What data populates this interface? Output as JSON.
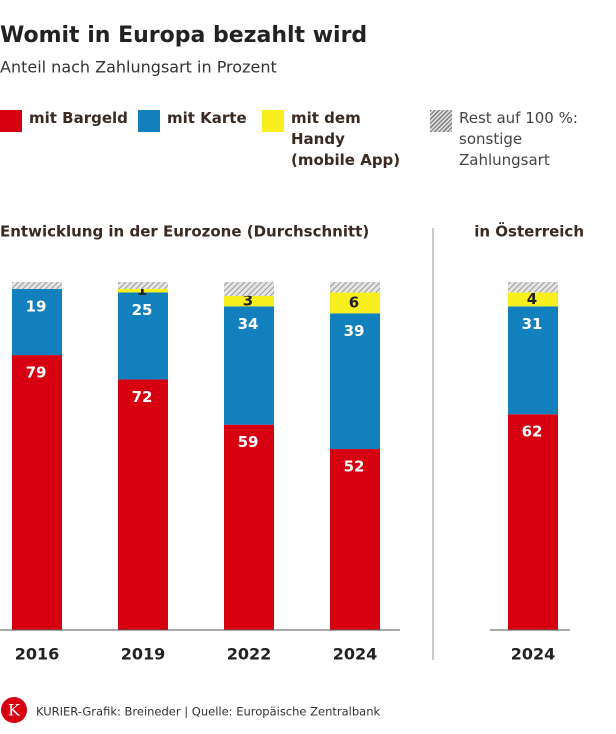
{
  "title": "Womit in Europa bezahlt wird",
  "subtitle": "Anteil nach Zahlungsart in Prozent",
  "source": "KURIER-Grafik: Breineder | Quelle: Europäische Zentralbank",
  "logo": "K",
  "chart_data": [
    {
      "type": "bar",
      "stacked": true,
      "title": "Entwicklung in der Eurozone (Durchschnitt)",
      "categories": [
        "2016",
        "2019",
        "2022",
        "2024"
      ],
      "ylim": [
        0,
        100
      ],
      "series": [
        {
          "name": "mit Bargeld",
          "color": "#d60010",
          "values": [
            79,
            72,
            59,
            52
          ]
        },
        {
          "name": "mit Karte",
          "color": "#1380be",
          "values": [
            19,
            25,
            34,
            39
          ]
        },
        {
          "name": "mit dem Handy (mobile App)",
          "color": "#f8f01e",
          "values": [
            0,
            1,
            3,
            6
          ]
        },
        {
          "name": "Rest auf 100 %: sonstige Zahlungsart",
          "color": "#9a9a9a",
          "hatch": true,
          "values": [
            2,
            2,
            4,
            3
          ]
        }
      ]
    },
    {
      "type": "bar",
      "stacked": true,
      "title": "in Österreich",
      "categories": [
        "2024"
      ],
      "ylim": [
        0,
        100
      ],
      "series": [
        {
          "color": "#d60010",
          "values": [
            62
          ]
        },
        {
          "color": "#1380be",
          "values": [
            31
          ]
        },
        {
          "color": "#f8f01e",
          "values": [
            4
          ]
        },
        {
          "color": "#9a9a9a",
          "hatch": true,
          "values": [
            3
          ]
        }
      ]
    }
  ]
}
